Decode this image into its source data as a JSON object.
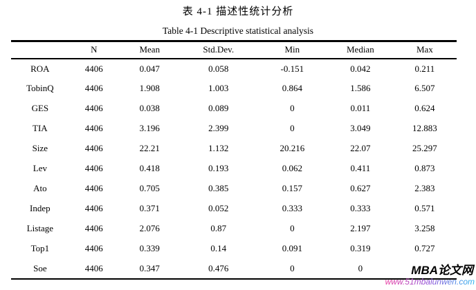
{
  "title_cn": "表 4-1 描述性统计分析",
  "title_en": "Table 4-1 Descriptive statistical analysis",
  "watermark": {
    "name": "MBA论文网",
    "url": "www.51mbalunwen.com",
    "gradient_colors": [
      "#e8389f",
      "#8b4fd8",
      "#27b4ef"
    ]
  },
  "chart_data": {
    "type": "table",
    "columns": [
      "",
      "N",
      "Mean",
      "Std.Dev.",
      "Min",
      "Median",
      "Max"
    ],
    "rows": [
      [
        "ROA",
        "4406",
        "0.047",
        "0.058",
        "-0.151",
        "0.042",
        "0.211"
      ],
      [
        "TobinQ",
        "4406",
        "1.908",
        "1.003",
        "0.864",
        "1.586",
        "6.507"
      ],
      [
        "GES",
        "4406",
        "0.038",
        "0.089",
        "0",
        "0.011",
        "0.624"
      ],
      [
        "TIA",
        "4406",
        "3.196",
        "2.399",
        "0",
        "3.049",
        "12.883"
      ],
      [
        "Size",
        "4406",
        "22.21",
        "1.132",
        "20.216",
        "22.07",
        "25.297"
      ],
      [
        "Lev",
        "4406",
        "0.418",
        "0.193",
        "0.062",
        "0.411",
        "0.873"
      ],
      [
        "Ato",
        "4406",
        "0.705",
        "0.385",
        "0.157",
        "0.627",
        "2.383"
      ],
      [
        "Indep",
        "4406",
        "0.371",
        "0.052",
        "0.333",
        "0.333",
        "0.571"
      ],
      [
        "Listage",
        "4406",
        "2.076",
        "0.87",
        "0",
        "2.197",
        "3.258"
      ],
      [
        "Top1",
        "4406",
        "0.339",
        "0.14",
        "0.091",
        "0.319",
        "0.727"
      ],
      [
        "Soe",
        "4406",
        "0.347",
        "0.476",
        "0",
        "0",
        ""
      ]
    ]
  }
}
